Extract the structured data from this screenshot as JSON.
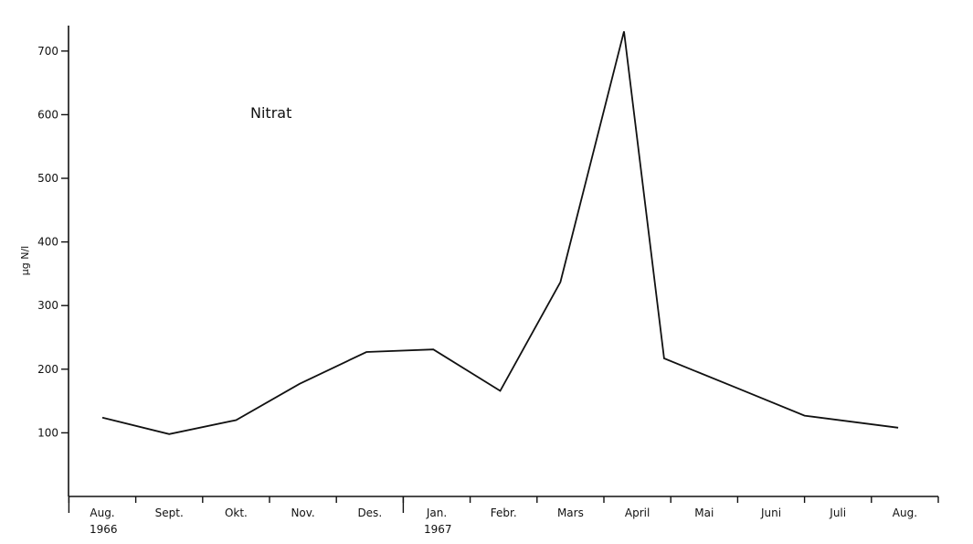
{
  "chart_data": {
    "type": "line",
    "title": "",
    "xlabel": "",
    "ylabel": "µg N/l",
    "annotation": "Nitrat",
    "categories": [
      "Aug.",
      "Sept.",
      "Okt.",
      "Nov.",
      "Des.",
      "Jan.",
      "Febr.",
      "Mars",
      "April",
      "Mai",
      "Juni",
      "Juli",
      "Aug."
    ],
    "year_labels": [
      {
        "index": 0,
        "text": "1966"
      },
      {
        "index": 5,
        "text": "1967"
      }
    ],
    "yticks": [
      100,
      200,
      300,
      400,
      500,
      600,
      700
    ],
    "ylim": [
      0,
      740
    ],
    "grid": false,
    "series": [
      {
        "points": [
          {
            "x": 0.0,
            "y": 124
          },
          {
            "x": 1.0,
            "y": 98
          },
          {
            "x": 2.0,
            "y": 120
          },
          {
            "x": 2.95,
            "y": 177
          },
          {
            "x": 3.95,
            "y": 227
          },
          {
            "x": 4.95,
            "y": 231
          },
          {
            "x": 5.95,
            "y": 166
          },
          {
            "x": 6.85,
            "y": 337
          },
          {
            "x": 7.8,
            "y": 731
          },
          {
            "x": 8.4,
            "y": 217
          },
          {
            "x": 9.5,
            "y": 170
          },
          {
            "x": 10.5,
            "y": 127
          },
          {
            "x": 11.9,
            "y": 108
          }
        ]
      }
    ]
  }
}
